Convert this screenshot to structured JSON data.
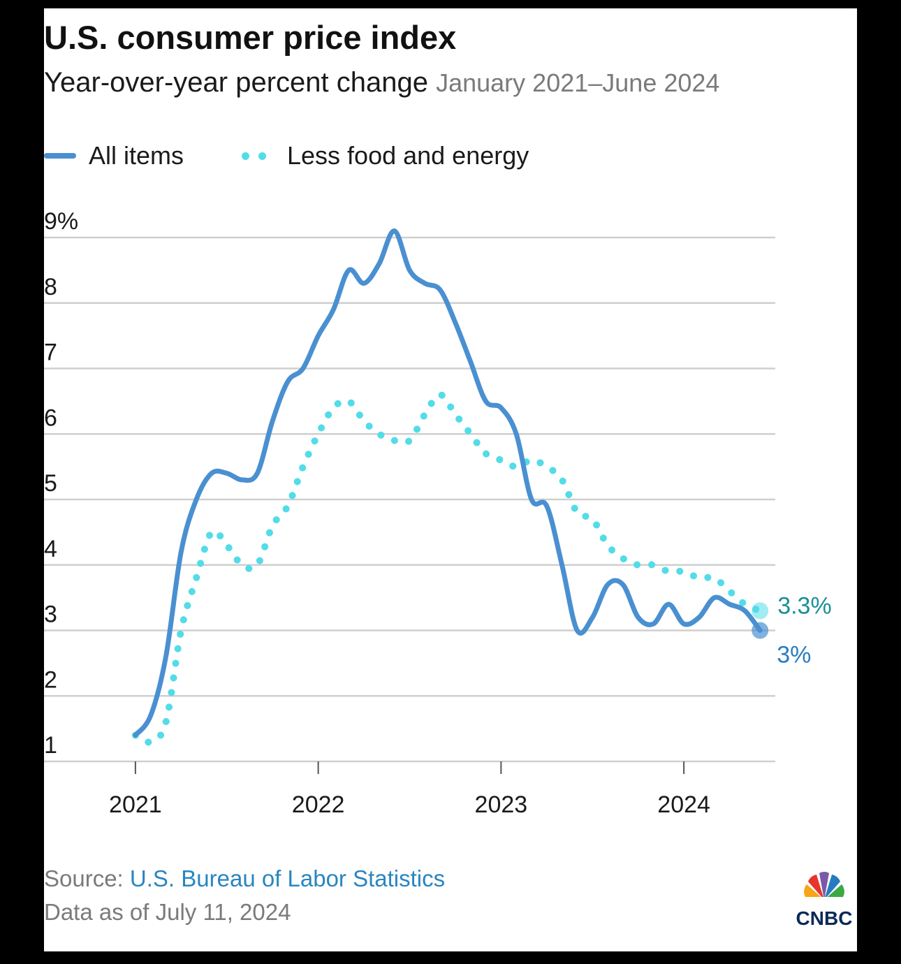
{
  "title": "U.S. consumer price index",
  "subtitle": "Year-over-year percent change",
  "date_range": "January 2021–June 2024",
  "legend": [
    {
      "label": "All items",
      "style": "line"
    },
    {
      "label": "Less food and energy",
      "style": "dotted"
    }
  ],
  "source_label": "Source:",
  "source_link": "U.S. Bureau of Labor Statistics",
  "data_as_of": "Data as of July 11, 2024",
  "brand": "CNBC",
  "colors": {
    "all_items": "#4a90d1",
    "core": "#52dce8",
    "label_all": "#2a7cc0",
    "label_core": "#1a8f95",
    "grid": "#cfcfcf",
    "link": "#2a85c0"
  },
  "chart_data": {
    "type": "line",
    "y_ticks": [
      {
        "value": 1,
        "label": "1"
      },
      {
        "value": 2,
        "label": "2"
      },
      {
        "value": 3,
        "label": "3"
      },
      {
        "value": 4,
        "label": "4"
      },
      {
        "value": 5,
        "label": "5"
      },
      {
        "value": 6,
        "label": "6"
      },
      {
        "value": 7,
        "label": "7"
      },
      {
        "value": 8,
        "label": "8"
      },
      {
        "value": 9,
        "label": "9%"
      }
    ],
    "x_ticks": [
      {
        "value": "2021-01",
        "label": "2021"
      },
      {
        "value": "2022-01",
        "label": "2022"
      },
      {
        "value": "2023-01",
        "label": "2023"
      },
      {
        "value": "2024-01",
        "label": "2024"
      }
    ],
    "ylim": [
      1,
      9
    ],
    "xlim": [
      "2020-07",
      "2024-07"
    ],
    "grid": true,
    "x": [
      "2021-01",
      "2021-02",
      "2021-03",
      "2021-04",
      "2021-05",
      "2021-06",
      "2021-07",
      "2021-08",
      "2021-09",
      "2021-10",
      "2021-11",
      "2021-12",
      "2022-01",
      "2022-02",
      "2022-03",
      "2022-04",
      "2022-05",
      "2022-06",
      "2022-07",
      "2022-08",
      "2022-09",
      "2022-10",
      "2022-11",
      "2022-12",
      "2023-01",
      "2023-02",
      "2023-03",
      "2023-04",
      "2023-05",
      "2023-06",
      "2023-07",
      "2023-08",
      "2023-09",
      "2023-10",
      "2023-11",
      "2023-12",
      "2024-01",
      "2024-02",
      "2024-03",
      "2024-04",
      "2024-05",
      "2024-06"
    ],
    "series": [
      {
        "name": "All items",
        "values": [
          1.4,
          1.7,
          2.6,
          4.2,
          5.0,
          5.4,
          5.4,
          5.3,
          5.4,
          6.2,
          6.8,
          7.0,
          7.5,
          7.9,
          8.5,
          8.3,
          8.6,
          9.1,
          8.5,
          8.3,
          8.2,
          7.7,
          7.1,
          6.5,
          6.4,
          6.0,
          5.0,
          4.9,
          4.0,
          3.0,
          3.2,
          3.7,
          3.7,
          3.2,
          3.1,
          3.4,
          3.1,
          3.2,
          3.5,
          3.4,
          3.3,
          3.0
        ],
        "end_label": "3%"
      },
      {
        "name": "Less food and energy",
        "values": [
          1.4,
          1.3,
          1.6,
          3.0,
          3.8,
          4.5,
          4.3,
          4.0,
          4.0,
          4.6,
          4.9,
          5.5,
          6.0,
          6.4,
          6.5,
          6.2,
          6.0,
          5.9,
          5.9,
          6.3,
          6.6,
          6.3,
          6.0,
          5.7,
          5.6,
          5.5,
          5.6,
          5.5,
          5.3,
          4.8,
          4.7,
          4.3,
          4.1,
          4.0,
          4.0,
          3.9,
          3.9,
          3.8,
          3.8,
          3.6,
          3.4,
          3.3
        ],
        "end_label": "3.3%"
      }
    ]
  }
}
